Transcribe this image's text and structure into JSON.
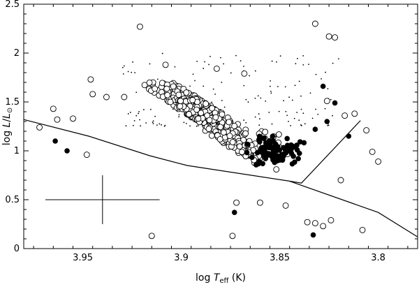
{
  "chart_data": {
    "type": "scatter",
    "x_reversed": true,
    "xlim": [
      3.78,
      3.98
    ],
    "ylim": [
      0,
      2.5
    ],
    "x_ticks": [
      3.95,
      3.9,
      3.85,
      3.8
    ],
    "x_tick_labels": [
      "3.95",
      "3.9",
      "3.85",
      "3.8"
    ],
    "y_ticks": [
      0,
      0.5,
      1,
      1.5,
      2,
      2.5
    ],
    "y_tick_labels": [
      "0",
      "0.5",
      "1",
      "1.5",
      "2",
      "2.5"
    ],
    "xlabel": {
      "prefix": "log ",
      "italic": "T",
      "sub": "eff",
      "suffix": " (K)"
    },
    "ylabel": {
      "prefix": "log ",
      "italic": "L",
      "mid": "/",
      "italic2": "L",
      "sub": "⊙"
    },
    "grid": false,
    "lines": [
      {
        "x": [
          3.98,
          3.947,
          3.916,
          3.897,
          3.845,
          3.839,
          3.809
        ],
        "y": [
          1.32,
          1.15,
          0.95,
          0.85,
          0.69,
          0.67,
          1.31
        ]
      },
      {
        "x": [
          3.845,
          3.8,
          3.78
        ],
        "y": [
          0.69,
          0.37,
          0.12
        ]
      }
    ],
    "error_bar": {
      "x": 3.94,
      "y": 0.5,
      "dx": 0.01,
      "dy": 0.25
    },
    "outliers_open": [
      [
        3.972,
        1.24
      ],
      [
        3.965,
        1.43
      ],
      [
        3.963,
        1.32
      ],
      [
        3.955,
        1.33
      ],
      [
        3.948,
        0.96
      ],
      [
        3.946,
        1.73
      ],
      [
        3.945,
        1.58
      ],
      [
        3.938,
        1.55
      ],
      [
        3.929,
        1.55
      ],
      [
        3.921,
        2.27
      ],
      [
        3.908,
        1.88
      ],
      [
        3.882,
        1.84
      ],
      [
        3.868,
        1.79
      ],
      [
        3.832,
        2.3
      ],
      [
        3.825,
        2.17
      ],
      [
        3.822,
        2.16
      ],
      [
        3.806,
        1.21
      ],
      [
        3.803,
        0.99
      ],
      [
        3.8,
        0.89
      ],
      [
        3.874,
        0.13
      ],
      [
        3.915,
        0.13
      ],
      [
        3.872,
        0.47
      ],
      [
        3.86,
        0.47
      ],
      [
        3.847,
        0.44
      ],
      [
        3.832,
        0.26
      ],
      [
        3.828,
        0.23
      ],
      [
        3.808,
        0.19
      ],
      [
        3.824,
        0.29
      ],
      [
        3.819,
        0.7
      ],
      [
        3.812,
        1.38
      ],
      [
        3.836,
        0.27
      ],
      [
        3.826,
        1.51
      ],
      [
        3.817,
        1.36
      ]
    ],
    "outliers_filled": [
      [
        3.964,
        1.1
      ],
      [
        3.958,
        1.0
      ],
      [
        3.873,
        0.37
      ],
      [
        3.833,
        0.14
      ],
      [
        3.815,
        1.15
      ],
      [
        3.822,
        1.49
      ],
      [
        3.828,
        1.66
      ],
      [
        3.826,
        1.3
      ],
      [
        3.832,
        1.22
      ]
    ],
    "dense_region": {
      "x": [
        3.83,
        3.96
      ],
      "y": [
        0.65,
        1.5
      ]
    },
    "small_dots_region": {
      "x": [
        3.82,
        3.93
      ],
      "y": [
        1.25,
        2.0
      ]
    }
  }
}
